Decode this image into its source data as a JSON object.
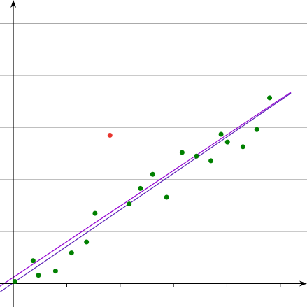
{
  "chart_data": {
    "type": "scatter",
    "title": "",
    "xlabel": "",
    "ylabel": "",
    "xlim": [
      -0.25,
      5.5
    ],
    "ylim": [
      -0.45,
      5.45
    ],
    "grid": true,
    "grid_lines_y": [
      1,
      2,
      3,
      4,
      5
    ],
    "x_ticks": [
      1,
      2,
      3,
      4,
      5
    ],
    "colors": {
      "points": "#008000",
      "outlier": "#e8352e",
      "fit_line_1": "#9400d3",
      "fit_line_2": "#5b21b6",
      "grid": "#aaaaaa",
      "axis": "#000000"
    },
    "series": [
      {
        "values": [
          {
            "x": 0.03,
            "y": 0.04
          },
          {
            "x": 0.37,
            "y": 0.44
          },
          {
            "x": 0.47,
            "y": 0.16
          },
          {
            "x": 0.79,
            "y": 0.24
          },
          {
            "x": 1.09,
            "y": 0.59
          },
          {
            "x": 1.37,
            "y": 0.8
          },
          {
            "x": 1.53,
            "y": 1.35
          },
          {
            "x": 2.17,
            "y": 1.53
          },
          {
            "x": 2.38,
            "y": 1.83
          },
          {
            "x": 2.61,
            "y": 2.1
          },
          {
            "x": 2.87,
            "y": 1.66
          },
          {
            "x": 3.16,
            "y": 2.52
          },
          {
            "x": 3.43,
            "y": 2.45
          },
          {
            "x": 3.7,
            "y": 2.36
          },
          {
            "x": 3.89,
            "y": 2.87
          },
          {
            "x": 4.01,
            "y": 2.72
          },
          {
            "x": 4.3,
            "y": 2.63
          },
          {
            "x": 4.56,
            "y": 2.96
          },
          {
            "x": 4.8,
            "y": 3.57
          }
        ]
      },
      {
        "values": [
          {
            "x": 1.81,
            "y": 2.85
          }
        ]
      }
    ],
    "lines": [
      {
        "from": {
          "x": -0.25,
          "y": -0.05
        },
        "to": {
          "x": 5.2,
          "y": 3.68
        }
      },
      {
        "from": {
          "x": -0.25,
          "y": -0.16
        },
        "to": {
          "x": 5.2,
          "y": 3.66
        }
      }
    ]
  }
}
